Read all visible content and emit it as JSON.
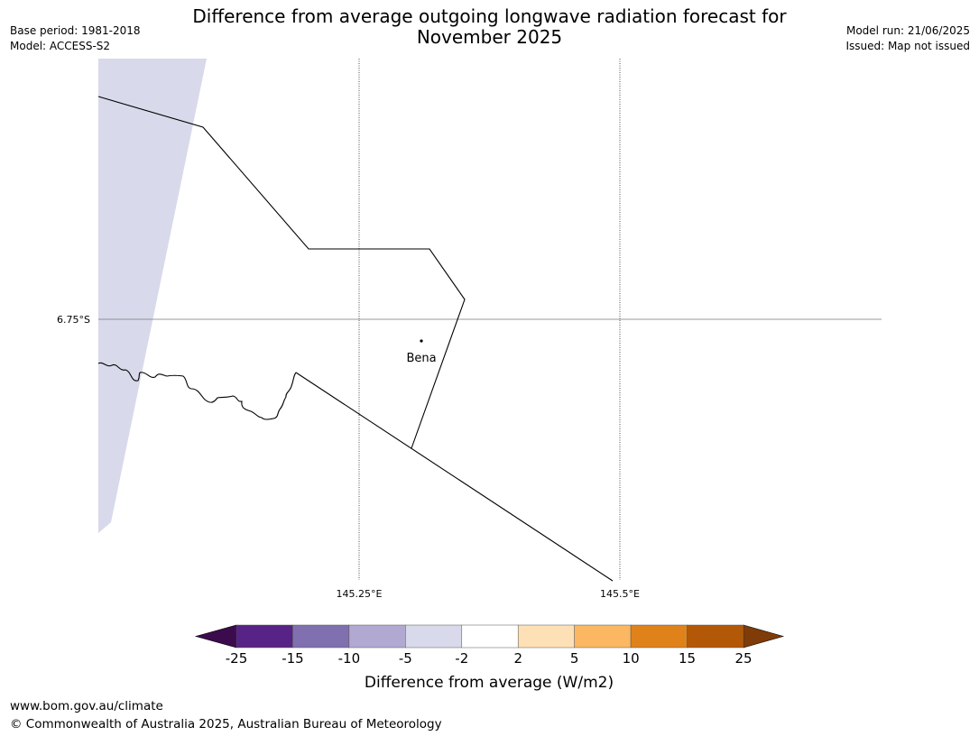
{
  "header": {
    "title_line1": "Difference from average outgoing longwave radiation forecast for",
    "title_line2": "November 2025",
    "base_period": "Base period: 1981-2018",
    "model": "Model: ACCESS-S2",
    "model_run": "Model run: 21/06/2025",
    "issued": "Issued: Map not issued"
  },
  "map": {
    "lat_labels": [
      "6.75°S"
    ],
    "lon_labels": [
      "145.25°E",
      "145.5°E"
    ],
    "place": {
      "name": "Bena"
    },
    "fill_color": "#d8d9ea",
    "boundary_color": "#000000"
  },
  "colorbar": {
    "label": "Difference from average (W/m2)",
    "ticks": [
      "-25",
      "-15",
      "-10",
      "-5",
      "-2",
      "2",
      "5",
      "10",
      "15",
      "25"
    ],
    "colors": [
      "#3b0b4e",
      "#572387",
      "#8170b0",
      "#b2a9d2",
      "#d8d9ea",
      "#ffffff",
      "#fee0b6",
      "#fbb762",
      "#e0821a",
      "#b35806",
      "#7f3b08"
    ]
  },
  "footer": {
    "url": "www.bom.gov.au/climate",
    "copyright": "© Commonwealth of Australia 2025, Australian Bureau of Meteorology"
  }
}
